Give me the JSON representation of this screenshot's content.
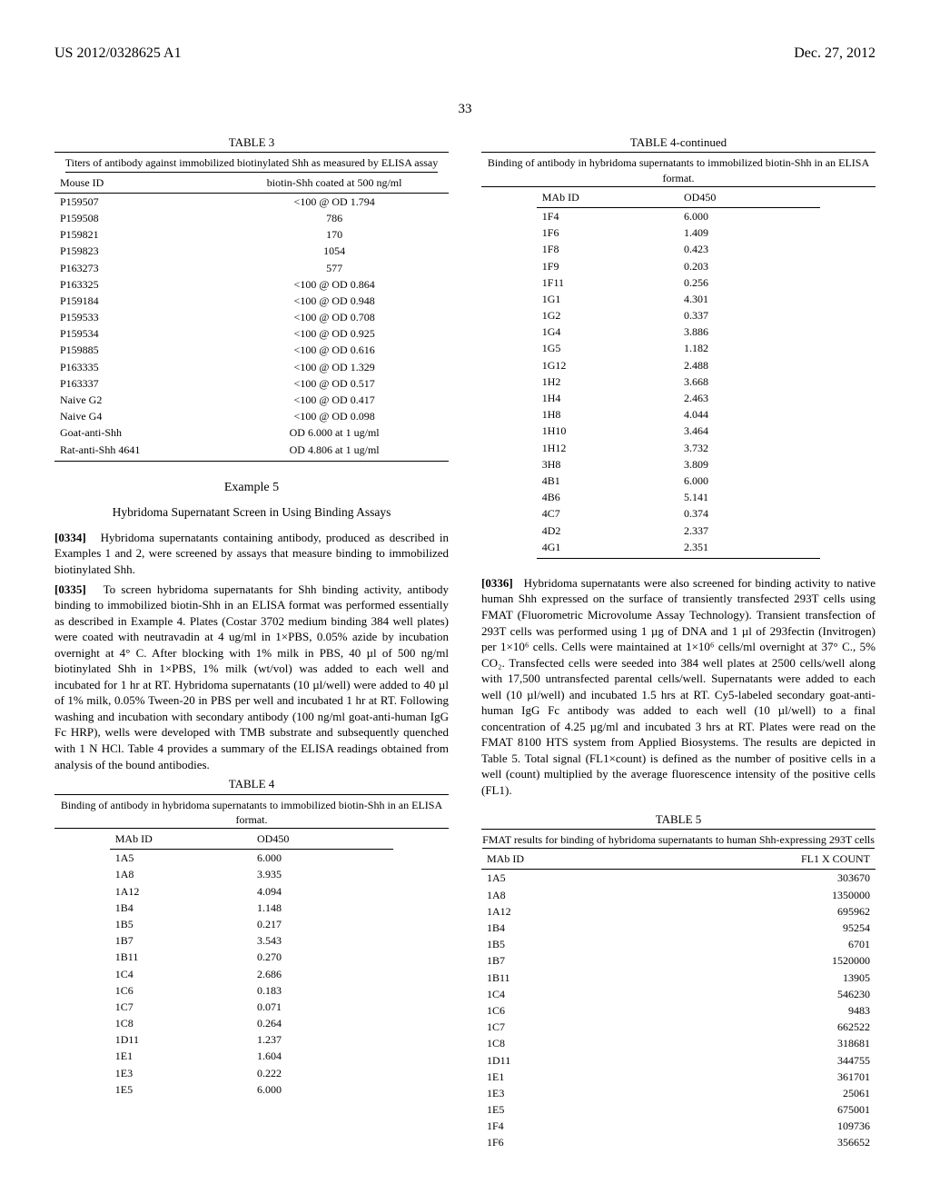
{
  "header": {
    "left": "US 2012/0328625 A1",
    "right": "Dec. 27, 2012"
  },
  "page_number": "33",
  "table3": {
    "caption": "TABLE 3",
    "subcaption": "Titers of antibody against immobilized biotinylated Shh as measured by ELISA assay",
    "col1": "Mouse ID",
    "col2": "biotin-Shh coated at 500 ng/ml",
    "rows": [
      [
        "P159507",
        "<100 @ OD 1.794"
      ],
      [
        "P159508",
        "786"
      ],
      [
        "P159821",
        "170"
      ],
      [
        "P159823",
        "1054"
      ],
      [
        "P163273",
        "577"
      ],
      [
        "P163325",
        "<100 @ OD 0.864"
      ],
      [
        "P159184",
        "<100 @ OD 0.948"
      ],
      [
        "P159533",
        "<100 @ OD 0.708"
      ],
      [
        "P159534",
        "<100 @ OD 0.925"
      ],
      [
        "P159885",
        "<100 @ OD 0.616"
      ],
      [
        "P163335",
        "<100 @ OD 1.329"
      ],
      [
        "P163337",
        "<100 @ OD 0.517"
      ],
      [
        "Naive G2",
        "<100 @ OD 0.417"
      ],
      [
        "Naive G4",
        "<100 @ OD 0.098"
      ],
      [
        "Goat-anti-Shh",
        "OD 6.000 at 1 ug/ml"
      ],
      [
        "Rat-anti-Shh 4641",
        "OD 4.806 at 1 ug/ml"
      ]
    ]
  },
  "example5": {
    "title": "Example 5",
    "heading": "Hybridoma Supernatant Screen in Using Binding Assays"
  },
  "para0334": {
    "num": "[0334]",
    "text": "Hybridoma supernatants containing antibody, produced as described in Examples 1 and 2, were screened by assays that measure binding to immobilized biotinylated Shh."
  },
  "para0335": {
    "num": "[0335]",
    "text": "To screen hybridoma supernatants for Shh binding activity, antibody binding to immobilized biotin-Shh in an ELISA format was performed essentially as described in Example 4. Plates (Costar 3702 medium binding 384 well plates) were coated with neutravadin at 4 ug/ml in 1×PBS, 0.05% azide by incubation overnight at 4° C. After blocking with 1% milk in PBS, 40 µl of 500 ng/ml biotinylated Shh in 1×PBS, 1% milk (wt/vol) was added to each well and incubated for 1 hr at RT. Hybridoma supernatants (10 µl/well) were added to 40 µl of 1% milk, 0.05% Tween-20 in PBS per well and incubated 1 hr at RT. Following washing and incubation with secondary antibody (100 ng/ml goat-anti-human IgG Fc HRP), wells were developed with TMB substrate and subsequently quenched with 1 N HCl. Table 4 provides a summary of the ELISA readings obtained from analysis of the bound antibodies."
  },
  "table4": {
    "caption": "TABLE 4",
    "subcaption": "Binding of antibody in hybridoma supernatants to immobilized biotin-Shh in an ELISA format.",
    "col1": "MAb ID",
    "col2": "OD450",
    "rows": [
      [
        "1A5",
        "6.000"
      ],
      [
        "1A8",
        "3.935"
      ],
      [
        "1A12",
        "4.094"
      ],
      [
        "1B4",
        "1.148"
      ],
      [
        "1B5",
        "0.217"
      ],
      [
        "1B7",
        "3.543"
      ],
      [
        "1B11",
        "0.270"
      ],
      [
        "1C4",
        "2.686"
      ],
      [
        "1C6",
        "0.183"
      ],
      [
        "1C7",
        "0.071"
      ],
      [
        "1C8",
        "0.264"
      ],
      [
        "1D11",
        "1.237"
      ],
      [
        "1E1",
        "1.604"
      ],
      [
        "1E3",
        "0.222"
      ],
      [
        "1E5",
        "6.000"
      ]
    ]
  },
  "table4cont": {
    "caption": "TABLE 4-continued",
    "subcaption": "Binding of antibody in hybridoma supernatants to immobilized biotin-Shh in an ELISA format.",
    "col1": "MAb ID",
    "col2": "OD450",
    "rows": [
      [
        "1F4",
        "6.000"
      ],
      [
        "1F6",
        "1.409"
      ],
      [
        "1F8",
        "0.423"
      ],
      [
        "1F9",
        "0.203"
      ],
      [
        "1F11",
        "0.256"
      ],
      [
        "1G1",
        "4.301"
      ],
      [
        "1G2",
        "0.337"
      ],
      [
        "1G4",
        "3.886"
      ],
      [
        "1G5",
        "1.182"
      ],
      [
        "1G12",
        "2.488"
      ],
      [
        "1H2",
        "3.668"
      ],
      [
        "1H4",
        "2.463"
      ],
      [
        "1H8",
        "4.044"
      ],
      [
        "1H10",
        "3.464"
      ],
      [
        "1H12",
        "3.732"
      ],
      [
        "3H8",
        "3.809"
      ],
      [
        "4B1",
        "6.000"
      ],
      [
        "4B6",
        "5.141"
      ],
      [
        "4C7",
        "0.374"
      ],
      [
        "4D2",
        "2.337"
      ],
      [
        "4G1",
        "2.351"
      ]
    ]
  },
  "para0336": {
    "num": "[0336]",
    "text": "Hybridoma supernatants were also screened for binding activity to native human Shh expressed on the surface of transiently transfected 293T cells using FMAT (Fluorometric Microvolume Assay Technology). Transient transfection of 293T cells was performed using 1 µg of DNA and 1 µl of 293fectin (Invitrogen) per 1×10⁶ cells. Cells were maintained at 1×10⁶ cells/ml overnight at 37° C., 5% CO₂. Transfected cells were seeded into 384 well plates at 2500 cells/well along with 17,500 untransfected parental cells/well. Supernatants were added to each well (10 µl/well) and incubated 1.5 hrs at RT. Cy5-labeled secondary goat-anti-human IgG Fc antibody was added to each well (10 µl/well) to a final concentration of 4.25 µg/ml and incubated 3 hrs at RT. Plates were read on the FMAT 8100 HTS system from Applied Biosystems. The results are depicted in Table 5. Total signal (FL1×count) is defined as the number of positive cells in a well (count) multiplied by the average fluorescence intensity of the positive cells (FL1)."
  },
  "table5": {
    "caption": "TABLE 5",
    "subcaption": "FMAT results for binding of hybridoma supernatants to human Shh-expressing 293T cells",
    "col1": "MAb ID",
    "col2": "FL1 X COUNT",
    "rows": [
      [
        "1A5",
        "303670"
      ],
      [
        "1A8",
        "1350000"
      ],
      [
        "1A12",
        "695962"
      ],
      [
        "1B4",
        "95254"
      ],
      [
        "1B5",
        "6701"
      ],
      [
        "1B7",
        "1520000"
      ],
      [
        "1B11",
        "13905"
      ],
      [
        "1C4",
        "546230"
      ],
      [
        "1C6",
        "9483"
      ],
      [
        "1C7",
        "662522"
      ],
      [
        "1C8",
        "318681"
      ],
      [
        "1D11",
        "344755"
      ],
      [
        "1E1",
        "361701"
      ],
      [
        "1E3",
        "25061"
      ],
      [
        "1E5",
        "675001"
      ],
      [
        "1F4",
        "109736"
      ],
      [
        "1F6",
        "356652"
      ]
    ]
  }
}
